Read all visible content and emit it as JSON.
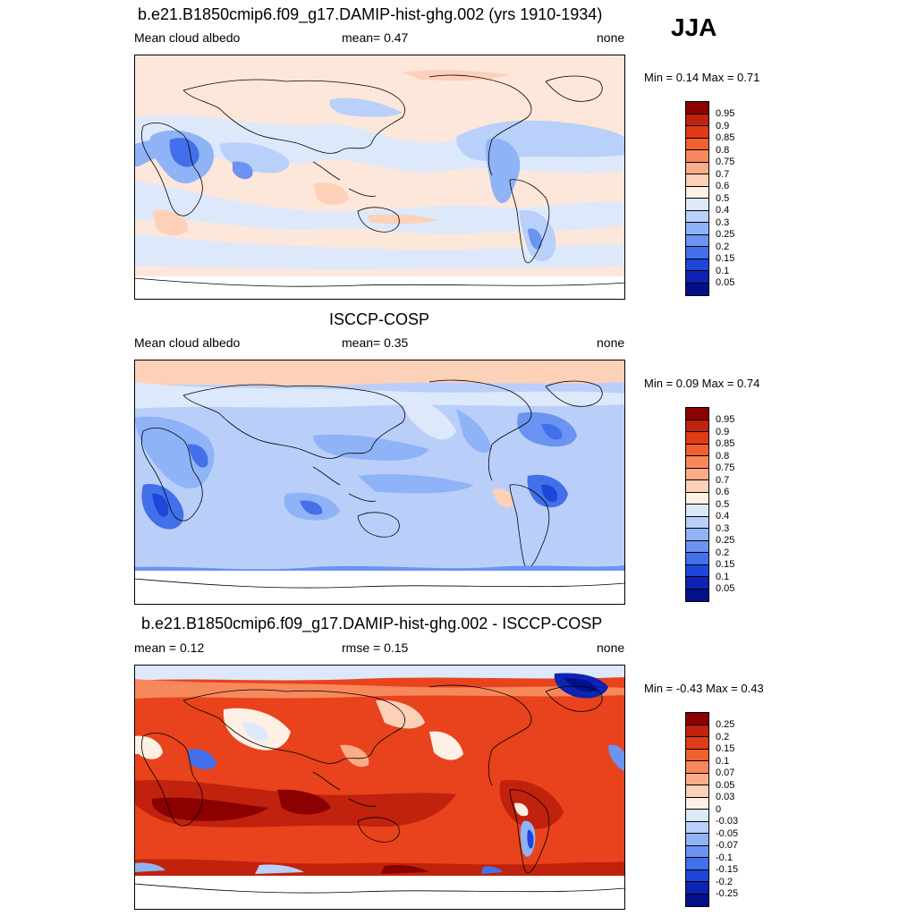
{
  "season": "JJA",
  "panels": [
    {
      "title": "b.e21.B1850cmip6.f09_g17.DAMIP-hist-ghg.002 (yrs 1910-1934)",
      "left_label": "Mean cloud albedo",
      "center_label": "mean=   0.47",
      "right_label": "none",
      "minmax": "Min =   0.14 Max =   0.71",
      "colorbar": {
        "labels": [
          "0.95",
          "0.9",
          "0.85",
          "0.8",
          "0.75",
          "0.7",
          "0.6",
          "0.5",
          "0.4",
          "0.3",
          "0.25",
          "0.2",
          "0.15",
          "0.1",
          "0.05"
        ],
        "colors": [
          "#8b0000",
          "#c0220d",
          "#e03a16",
          "#f0602f",
          "#f7885c",
          "#fbad8a",
          "#fdd0b8",
          "#fef0e4",
          "#dde9fb",
          "#b8d0fa",
          "#8fb3f7",
          "#6a93f2",
          "#4270eb",
          "#1e46d8",
          "#0d23b3",
          "#03108a"
        ]
      },
      "map": {
        "type": "contour-map",
        "projection": "cylindrical-equidistant",
        "central_longitude": 180,
        "base_color": "#fde7da",
        "missing_region": "south of ~65S (white)"
      }
    },
    {
      "title": "ISCCP-COSP",
      "left_label": "Mean cloud albedo",
      "center_label": "mean=   0.35",
      "right_label": "none",
      "minmax": "Min =   0.09 Max =   0.74",
      "colorbar": {
        "labels": [
          "0.95",
          "0.9",
          "0.85",
          "0.8",
          "0.75",
          "0.7",
          "0.6",
          "0.5",
          "0.4",
          "0.3",
          "0.25",
          "0.2",
          "0.15",
          "0.1",
          "0.05"
        ],
        "colors": [
          "#8b0000",
          "#c0220d",
          "#e03a16",
          "#f0602f",
          "#f7885c",
          "#fbad8a",
          "#fdd0b8",
          "#fef0e4",
          "#dde9fb",
          "#b8d0fa",
          "#8fb3f7",
          "#6a93f2",
          "#4270eb",
          "#1e46d8",
          "#0d23b3",
          "#03108a"
        ]
      },
      "map": {
        "type": "contour-map",
        "projection": "cylindrical-equidistant",
        "central_longitude": 180,
        "base_color": "#b9cffa",
        "missing_region": "south of ~62S (white)"
      }
    },
    {
      "title": "b.e21.B1850cmip6.f09_g17.DAMIP-hist-ghg.002 - ISCCP-COSP",
      "left_label": "mean =   0.12",
      "center_label": "rmse =   0.15",
      "right_label": "none",
      "minmax": "Min =  -0.43 Max =   0.43",
      "colorbar": {
        "labels": [
          "0.25",
          "0.2",
          "0.15",
          "0.1",
          "0.07",
          "0.05",
          "0.03",
          "0",
          "-0.03",
          "-0.05",
          "-0.07",
          "-0.1",
          "-0.15",
          "-0.2",
          "-0.25"
        ],
        "colors": [
          "#8b0000",
          "#c0220d",
          "#e03a16",
          "#f0602f",
          "#f7885c",
          "#fbad8a",
          "#fdd0b8",
          "#fef0e4",
          "#dde9fb",
          "#b8d0fa",
          "#8fb3f7",
          "#6a93f2",
          "#4270eb",
          "#1e46d8",
          "#0d23b3",
          "#03108a"
        ]
      },
      "map": {
        "type": "contour-map",
        "projection": "cylindrical-equidistant",
        "central_longitude": 180,
        "base_color": "#e8431c",
        "missing_region": "south of ~62S (white)"
      }
    }
  ]
}
